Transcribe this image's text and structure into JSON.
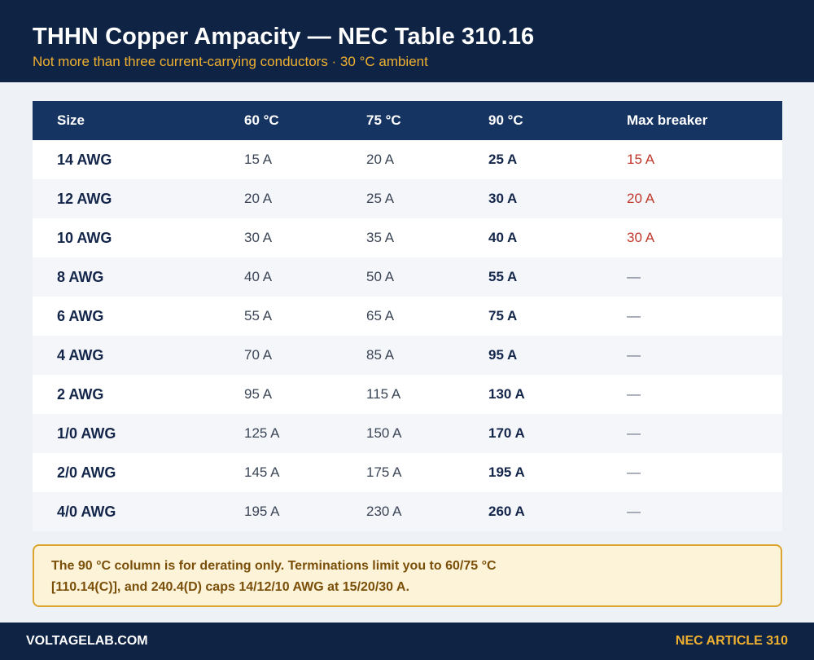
{
  "header": {
    "title": "THHN Copper Ampacity — NEC Table 310.16",
    "subtitle": "Not more than three current-carrying conductors · 30 °C ambient"
  },
  "table": {
    "columns": [
      "Size",
      "60 °C",
      "75 °C",
      "90 °C",
      "Max breaker"
    ],
    "rows": [
      [
        "14 AWG",
        "15 A",
        "20 A",
        "25 A",
        "15 A"
      ],
      [
        "12 AWG",
        "20 A",
        "25 A",
        "30 A",
        "20 A"
      ],
      [
        "10 AWG",
        "30 A",
        "35 A",
        "40 A",
        "30 A"
      ],
      [
        "8 AWG",
        "40 A",
        "50 A",
        "55 A",
        "—"
      ],
      [
        "6 AWG",
        "55 A",
        "65 A",
        "75 A",
        "—"
      ],
      [
        "4 AWG",
        "70 A",
        "85 A",
        "95 A",
        "—"
      ],
      [
        "2 AWG",
        "95 A",
        "115 A",
        "130 A",
        "—"
      ],
      [
        "1/0 AWG",
        "125 A",
        "150 A",
        "170 A",
        "—"
      ],
      [
        "2/0 AWG",
        "145 A",
        "175 A",
        "195 A",
        "—"
      ],
      [
        "4/0 AWG",
        "195 A",
        "230 A",
        "260 A",
        "—"
      ]
    ]
  },
  "note": {
    "text": "The 90 °C column is for derating only. Terminations limit you to 60/75 °C [110.14(C)], and 240.4(D) caps 14/12/10 AWG at 15/20/30 A."
  },
  "footer": {
    "left": "VOLTAGELAB.COM",
    "right": "NEC ARTICLE 310"
  },
  "colors": {
    "header_bg": "#0f2444",
    "table_header_bg": "#163462",
    "accent": "#f0b030",
    "breaker_red": "#c0392b",
    "note_bg": "#fdf3d8",
    "note_border": "#dba530"
  }
}
